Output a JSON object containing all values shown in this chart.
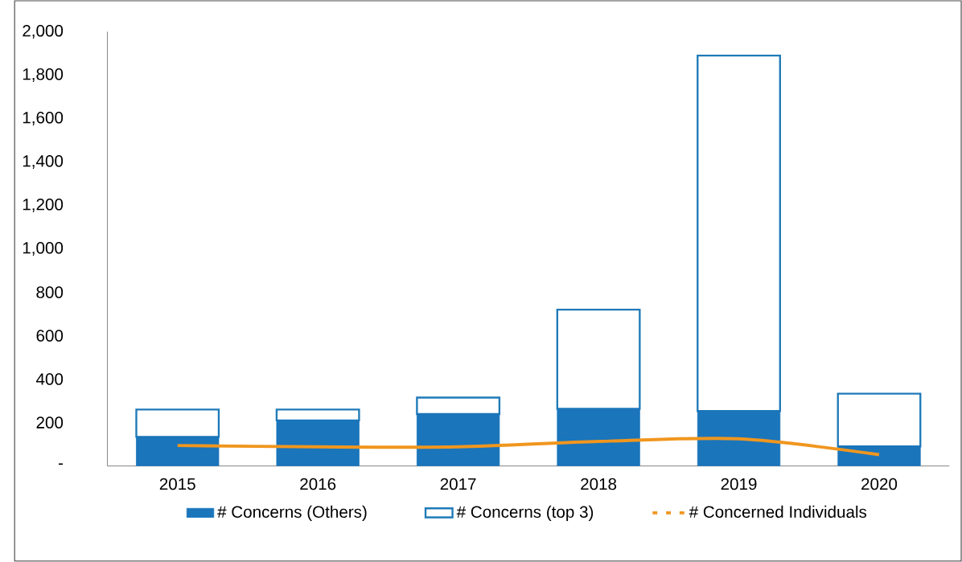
{
  "chart_data": {
    "type": "bar",
    "stacked": true,
    "categories": [
      "2015",
      "2016",
      "2017",
      "2018",
      "2019",
      "2020"
    ],
    "series": [
      {
        "name": "# Concerns (Others)",
        "color": "#1a75bb",
        "values": [
          134,
          210,
          239,
          263,
          253,
          90
        ]
      },
      {
        "name": "# Concerns (top 3)",
        "color": "#1f7ab8",
        "values": [
          126,
          50,
          76,
          457,
          1637,
          243
        ]
      },
      {
        "name": "# Concerned Individuals",
        "type": "line",
        "color": "#f0961e",
        "values": [
          94,
          88,
          88,
          113,
          125,
          52
        ]
      }
    ],
    "ylim": [
      0,
      2000
    ],
    "yticks": [
      {
        "value": 0,
        "label": "-"
      },
      200,
      400,
      600,
      800,
      {
        "value": 1000,
        "label": "1,000"
      },
      {
        "value": 1200,
        "label": "1,200"
      },
      {
        "value": 1400,
        "label": "1,400"
      },
      {
        "value": 1600,
        "label": "1,600"
      },
      {
        "value": 1800,
        "label": "1,800"
      },
      {
        "value": 2000,
        "label": "2,000"
      }
    ],
    "grid": false,
    "legend": "bottom",
    "marker": "none"
  }
}
